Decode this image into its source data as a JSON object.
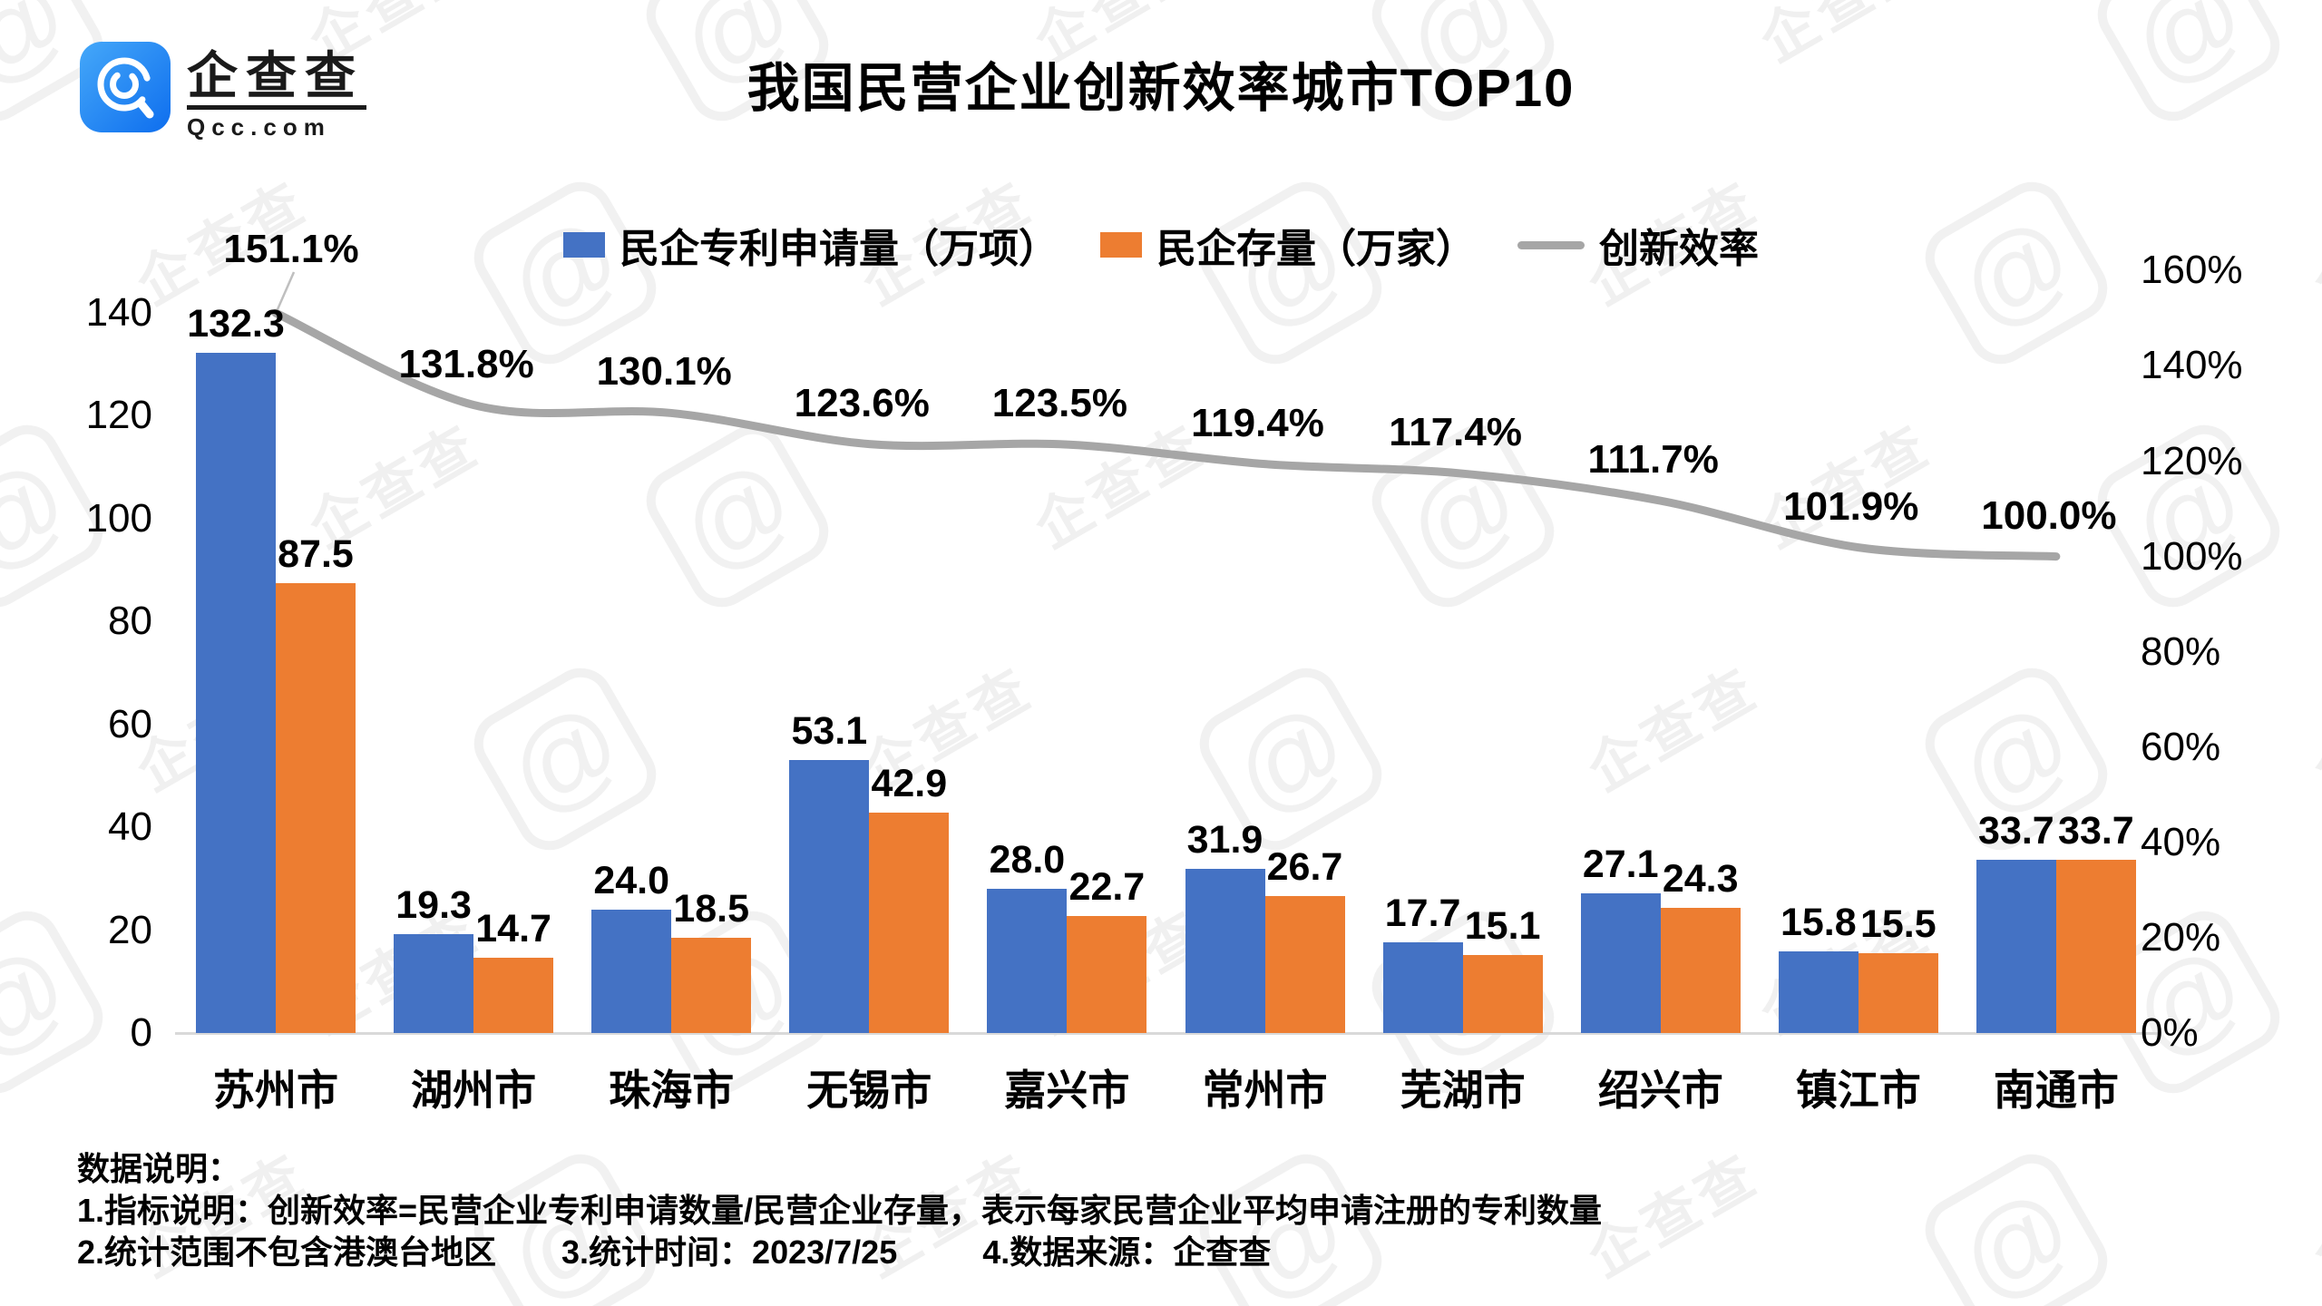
{
  "logo": {
    "brand": "企查查",
    "domain": "Qcc.com"
  },
  "title": "我国民营企业创新效率城市TOP10",
  "legend": [
    {
      "label": "民企专利申请量（万项）",
      "swatch": "square",
      "color": "#4472C4"
    },
    {
      "label": "民企存量（万家）",
      "swatch": "square",
      "color": "#ED7D31"
    },
    {
      "label": "创新效率",
      "swatch": "line",
      "color": "#A6A6A6"
    }
  ],
  "chart_data": {
    "type": "bar",
    "title": "我国民营企业创新效率城市TOP10",
    "categories": [
      "苏州市",
      "湖州市",
      "珠海市",
      "无锡市",
      "嘉兴市",
      "常州市",
      "芜湖市",
      "绍兴市",
      "镇江市",
      "南通市"
    ],
    "series": [
      {
        "name": "民企专利申请量（万项）",
        "type": "bar",
        "axis": "left",
        "color": "#4472C4",
        "values": [
          132.3,
          19.3,
          24.0,
          53.1,
          28.0,
          31.9,
          17.7,
          27.1,
          15.8,
          33.7
        ]
      },
      {
        "name": "民企存量（万家）",
        "type": "bar",
        "axis": "left",
        "color": "#ED7D31",
        "values": [
          87.5,
          14.7,
          18.5,
          42.9,
          22.7,
          26.7,
          15.1,
          24.3,
          15.5,
          33.7
        ]
      },
      {
        "name": "创新效率",
        "type": "line",
        "axis": "right",
        "color": "#A6A6A6",
        "unit": "%",
        "values": [
          151.1,
          131.8,
          130.1,
          123.6,
          123.5,
          119.4,
          117.4,
          111.7,
          101.9,
          100.0
        ]
      }
    ],
    "left_axis": {
      "ticks": [
        140,
        120,
        100,
        80,
        60,
        40,
        20,
        0
      ],
      "range": [
        0,
        140
      ]
    },
    "right_axis": {
      "ticks": [
        "160%",
        "140%",
        "120%",
        "100%",
        "80%",
        "60%",
        "40%",
        "20%",
        "0%"
      ],
      "range_pct": [
        0,
        160
      ]
    },
    "grid": false,
    "legend_position": "top"
  },
  "notes": {
    "heading": "数据说明：",
    "line1": "1.指标说明：创新效率=民营企业专利申请数量/民营企业存量，表示每家民营企业平均申请注册的专利数量",
    "line2_items": [
      "2.统计范围不包含港澳台地区",
      "3.统计时间：2023/7/25",
      "4.数据来源：企查查"
    ]
  },
  "watermark": {
    "text": "企查查",
    "glyph": "@"
  },
  "colors": {
    "bar_blue": "#4472C4",
    "bar_orange": "#ED7D31",
    "line_gray": "#A6A6A6",
    "axis_gray": "#D9D9D9"
  }
}
